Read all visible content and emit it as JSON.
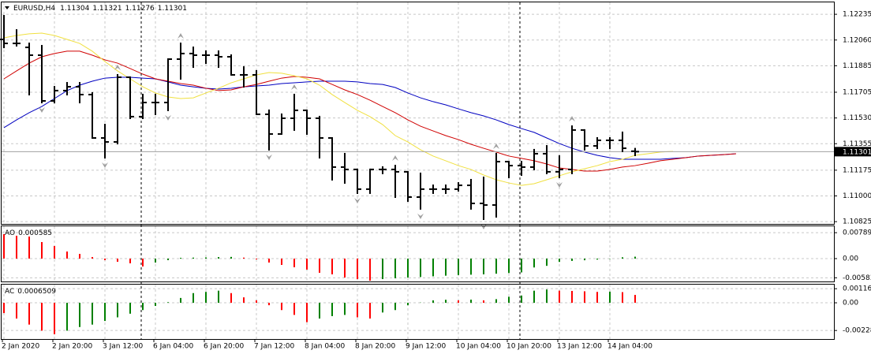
{
  "chart_data": [
    {
      "type": "ohlc",
      "title": "EURUSD,H4",
      "ohlc_header": [
        1.11304,
        1.11321,
        1.11276,
        1.11301
      ],
      "last_price": 1.11301,
      "last_price_color": "#a0a0a0",
      "color": "#000000",
      "fractal_color": "#a0a0a0",
      "categories": [
        "2 Jan 2020",
        null,
        null,
        null,
        "2 Jan 20:00",
        null,
        null,
        null,
        "3 Jan 12:00",
        null,
        null,
        null,
        "6 Jan 04:00",
        null,
        null,
        null,
        "6 Jan 20:00",
        null,
        null,
        null,
        "7 Jan 12:00",
        null,
        null,
        null,
        "8 Jan 04:00",
        null,
        null,
        null,
        "8 Jan 20:00",
        null,
        null,
        null,
        "9 Jan 12:00",
        null,
        null,
        null,
        "10 Jan 04:00",
        null,
        null,
        null,
        "10 Jan 20:00",
        null,
        null,
        null,
        "13 Jan 12:00",
        null,
        null,
        null,
        "14 Jan 04:00",
        null,
        null,
        null,
        null,
        null,
        null,
        null,
        null,
        null,
        null
      ],
      "open": [
        1.12064,
        1.12037,
        1.1201,
        1.11957,
        1.11646,
        1.11716,
        1.11742,
        1.11689,
        1.11394,
        1.11367,
        1.11807,
        1.11539,
        1.11635,
        1.11635,
        1.1193,
        1.11968,
        1.11957,
        1.11957,
        1.11946,
        1.11823,
        1.11823,
        1.11555,
        1.11421,
        1.11528,
        1.11582,
        1.11528,
        1.11394,
        1.11196,
        1.1118,
        1.11046,
        1.1118,
        1.1118,
        1.11164,
        1.10992,
        1.11046,
        1.11046,
        1.11046,
        1.11072,
        1.10949,
        1.10938,
        1.11233,
        1.11206,
        1.11196,
        1.11287,
        1.11164,
        1.1118,
        1.11448,
        1.1134,
        1.11378,
        1.11378,
        1.11304,
        null,
        null,
        null,
        null,
        null,
        null,
        null,
        null
      ],
      "high": [
        1.12225,
        1.12128,
        1.12037,
        1.12021,
        1.11742,
        1.11769,
        1.11769,
        1.117,
        1.11485,
        1.11823,
        1.11807,
        1.11689,
        1.11689,
        1.1193,
        1.12037,
        1.1201,
        1.11984,
        1.11984,
        1.11957,
        1.11876,
        1.1185,
        1.11582,
        1.11555,
        1.11689,
        1.11582,
        1.11539,
        1.11394,
        1.11287,
        1.1118,
        1.1118,
        1.11196,
        1.11206,
        1.11164,
        1.11153,
        1.11072,
        1.11072,
        1.11088,
        1.1111,
        1.11126,
        1.11287,
        1.11233,
        1.11233,
        1.11314,
        1.1134,
        1.11271,
        1.11474,
        1.11448,
        1.11394,
        1.11394,
        1.11432,
        1.11321,
        null,
        null,
        null,
        null,
        null,
        null,
        null,
        null
      ],
      "low": [
        1.1201,
        1.12021,
        1.11689,
        1.11635,
        1.11635,
        1.11689,
        1.11635,
        1.11394,
        1.1126,
        1.11356,
        1.11528,
        1.11528,
        1.11555,
        1.11582,
        1.11796,
        1.11876,
        1.11903,
        1.11876,
        1.11823,
        1.11742,
        1.11555,
        1.11314,
        1.11421,
        1.11448,
        1.11421,
        1.1126,
        1.1111,
        1.11088,
        1.11019,
        1.11019,
        1.11153,
        1.10992,
        1.10965,
        1.10912,
        1.11019,
        1.11019,
        1.11035,
        1.10912,
        1.10842,
        1.10858,
        1.11126,
        1.11142,
        1.1118,
        1.11153,
        1.11126,
        1.11153,
        1.11314,
        1.11324,
        1.11324,
        1.11303,
        1.11276,
        null,
        null,
        null,
        null,
        null,
        null,
        null,
        null
      ],
      "close": [
        1.12037,
        1.12037,
        1.11957,
        1.11646,
        1.11716,
        1.11742,
        1.11689,
        1.11394,
        1.11367,
        1.11807,
        1.11539,
        1.11635,
        1.11635,
        1.1193,
        1.11968,
        1.11957,
        1.11957,
        1.11946,
        1.11823,
        1.11823,
        1.11555,
        1.11421,
        1.11528,
        1.11582,
        1.11528,
        1.11394,
        1.11196,
        1.1118,
        1.11046,
        1.1118,
        1.1118,
        1.11164,
        1.10992,
        1.11046,
        1.11046,
        1.11046,
        1.11072,
        1.10949,
        1.10938,
        1.11233,
        1.11206,
        1.11196,
        1.11287,
        1.11164,
        1.1118,
        1.11448,
        1.1134,
        1.11378,
        1.11378,
        1.11324,
        1.11301,
        null,
        null,
        null,
        null,
        null,
        null,
        null,
        null
      ],
      "fractals_up": [
        null,
        null,
        null,
        null,
        null,
        null,
        null,
        null,
        null,
        1.11823,
        null,
        null,
        null,
        null,
        1.12037,
        null,
        null,
        null,
        null,
        null,
        null,
        null,
        null,
        1.11689,
        null,
        null,
        null,
        null,
        null,
        null,
        null,
        1.11206,
        null,
        null,
        null,
        null,
        null,
        null,
        null,
        1.11287,
        null,
        null,
        null,
        null,
        null,
        1.11474,
        null,
        null,
        null,
        null,
        null,
        null,
        null,
        null,
        null,
        null,
        null,
        null,
        null
      ],
      "fractals_down": [
        null,
        null,
        null,
        1.11635,
        null,
        null,
        null,
        null,
        1.1126,
        null,
        null,
        null,
        null,
        1.11582,
        null,
        null,
        null,
        null,
        null,
        null,
        null,
        1.11314,
        null,
        null,
        null,
        null,
        null,
        null,
        1.11019,
        null,
        null,
        null,
        null,
        1.10912,
        null,
        null,
        null,
        null,
        1.10842,
        null,
        null,
        null,
        null,
        null,
        1.11126,
        null,
        null,
        null,
        null,
        null,
        null,
        null,
        null,
        null,
        null,
        null,
        null,
        null,
        null
      ],
      "series": [
        {
          "color": "#0000c0",
          "values": [
            1.11464,
            1.11517,
            1.11566,
            1.11608,
            1.11662,
            1.11716,
            1.11753,
            1.1178,
            1.11801,
            1.11807,
            1.11807,
            1.11801,
            1.11796,
            1.11775,
            1.11753,
            1.11742,
            1.11732,
            1.11726,
            1.11732,
            1.11742,
            1.11748,
            1.11753,
            1.11764,
            1.11769,
            1.11775,
            1.1178,
            1.1178,
            1.1178,
            1.11775,
            1.11764,
            1.11758,
            1.11737,
            1.117,
            1.11667,
            1.11641,
            1.11619,
            1.11592,
            1.11566,
            1.11544,
            1.11517,
            1.11485,
            1.11458,
            1.11432,
            1.11394,
            1.11356,
            1.11324,
            1.11298,
            1.11276,
            1.1126,
            1.11249,
            1.11249,
            1.11249,
            1.11249,
            1.11255,
            1.1126,
            1.11271,
            1.11276,
            1.11281,
            1.11287
          ]
        },
        {
          "color": "#d00000",
          "values": [
            1.11796,
            1.1185,
            1.11903,
            1.11946,
            1.11968,
            1.11984,
            1.11984,
            1.11957,
            1.11925,
            1.11903,
            1.11866,
            1.11828,
            1.11796,
            1.1178,
            1.11764,
            1.11753,
            1.11732,
            1.11716,
            1.11721,
            1.11742,
            1.11758,
            1.1178,
            1.11801,
            1.11812,
            1.11807,
            1.11796,
            1.11758,
            1.11721,
            1.11689,
            1.11651,
            1.11608,
            1.11566,
            1.11517,
            1.11474,
            1.11442,
            1.1141,
            1.11383,
            1.11351,
            1.11324,
            1.11298,
            1.11271,
            1.11255,
            1.11239,
            1.11217,
            1.1119,
            1.1118,
            1.11169,
            1.11169,
            1.1118,
            1.11196,
            1.11206,
            1.11222,
            1.11239,
            1.11249,
            1.1126,
            1.11271,
            1.11276,
            1.11281,
            1.11287
          ]
        },
        {
          "color": "#f0e040",
          "values": [
            1.12075,
            1.12091,
            1.12102,
            1.12107,
            1.12091,
            1.12064,
            1.12037,
            1.11984,
            1.11914,
            1.1185,
            1.11796,
            1.11742,
            1.117,
            1.11673,
            1.11662,
            1.11667,
            1.117,
            1.11732,
            1.11769,
            1.11796,
            1.11823,
            1.11839,
            1.11834,
            1.11817,
            1.11796,
            1.11753,
            1.11689,
            1.11635,
            1.11582,
            1.11539,
            1.11485,
            1.1141,
            1.11367,
            1.11314,
            1.11271,
            1.11239,
            1.11206,
            1.1118,
            1.11142,
            1.1111,
            1.11088,
            1.11072,
            1.11083,
            1.1111,
            1.11137,
            1.11164,
            1.11185,
            1.11206,
            1.11233,
            1.11249,
            1.11276,
            1.11287,
            1.11298,
            1.11303,
            null,
            null,
            null,
            null,
            null
          ]
        }
      ],
      "ylim": [
        1.10815,
        1.12316
      ],
      "yticks": [
        1.12235,
        {
          "value": 1.1206,
          "label": "1.12060"
        },
        1.11885,
        1.11705,
        {
          "value": 1.1153,
          "label": "1.11530"
        },
        1.11355,
        1.11175,
        {
          "value": 1.11,
          "label": "1.11000"
        },
        1.10825
      ],
      "grid": true
    },
    {
      "type": "histogram",
      "title": "AO",
      "indicator_value": 0.000585,
      "up_color": "#008000",
      "down_color": "#ff0000",
      "values": [
        0.00744,
        0.00696,
        0.00672,
        0.00504,
        0.00384,
        0.00216,
        0.00144,
        0.00048,
        -0.00048,
        -0.00096,
        -0.00144,
        -0.0024,
        -0.0012,
        -0.00048,
        0.00024,
        0.0003,
        0.00036,
        0.00048,
        0.00052,
        0.0003,
        -0.00024,
        -0.0012,
        -0.00192,
        -0.00264,
        -0.00336,
        -0.00432,
        -0.0048,
        -0.00576,
        -0.00624,
        -0.00672,
        -0.00624,
        -0.006,
        -0.0058,
        -0.0056,
        -0.0054,
        -0.0052,
        -0.005,
        -0.0049,
        -0.0048,
        -0.0046,
        -0.0044,
        -0.0042,
        -0.0027,
        -0.0022,
        -0.001,
        -0.0007,
        -0.0005,
        -0.0003,
        -0.0001,
        0.0004,
        0.000585,
        null,
        null,
        null,
        null,
        null,
        null,
        null,
        null
      ],
      "ylim": [
        -0.00696,
        0.00984
      ],
      "yticks": [
        0.007892,
        {
          "value": 0,
          "label": "0.00"
        },
        -0.005839
      ],
      "grid": true
    },
    {
      "type": "histogram",
      "title": "AC",
      "indicator_value": 0.0006509,
      "up_color": "#008000",
      "down_color": "#ff0000",
      "values": [
        -0.00085,
        -0.0013,
        -0.0018,
        -0.0023,
        -0.0026,
        -0.0023,
        -0.002,
        -0.0018,
        -0.0015,
        -0.0012,
        -0.0009,
        -0.0006,
        -0.00026,
        5e-05,
        0.0004,
        0.0008,
        0.0009,
        0.001,
        0.0008,
        0.00045,
        0.0002,
        -0.0002,
        -0.0006,
        -0.001,
        -0.0016,
        -0.0013,
        -0.0011,
        -0.001,
        -0.0012,
        -0.0013,
        -0.0008,
        -0.0006,
        -0.0002,
        2e-05,
        0.0002,
        0.00025,
        0.0002,
        0.00026,
        0.0002,
        0.0003,
        0.0005,
        0.0006,
        0.001,
        0.0011,
        0.001,
        0.00098,
        0.00095,
        0.0009,
        0.00092,
        0.00088,
        0.0006509,
        null,
        null,
        null,
        null,
        null,
        null,
        null,
        null
      ],
      "ylim": [
        -0.00299,
        0.0015
      ],
      "yticks": [
        0.0011626,
        {
          "value": 0,
          "label": "0.00"
        },
        -0.0022853
      ],
      "grid": true
    }
  ]
}
